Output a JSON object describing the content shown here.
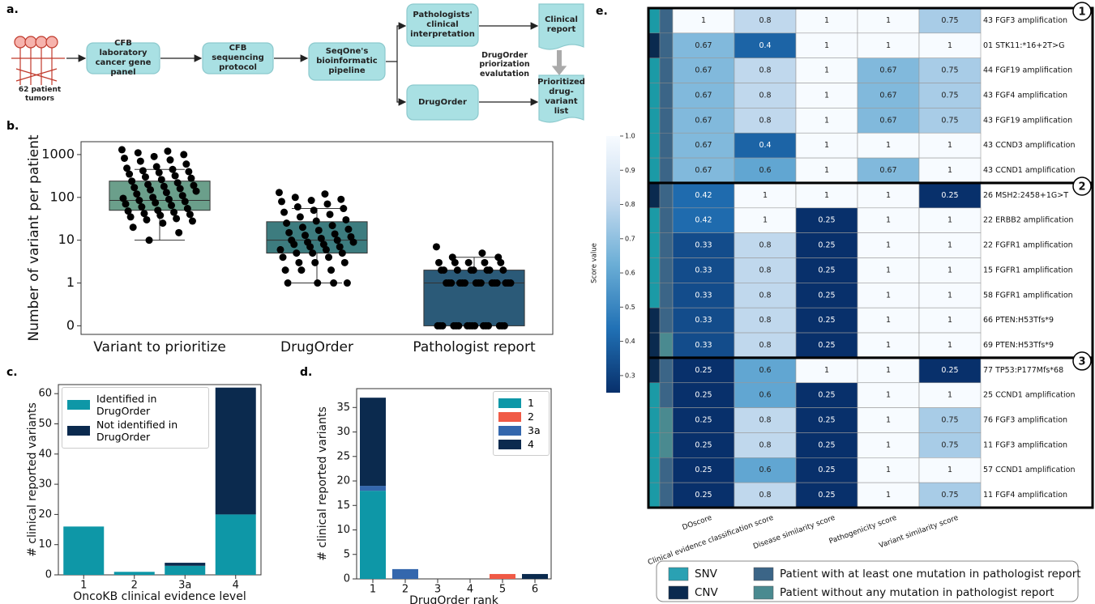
{
  "panel_labels": [
    "a.",
    "b.",
    "c.",
    "d.",
    "e."
  ],
  "diagram": {
    "source": "62 patient tumors",
    "nodes": [
      "CFB laboratory cancer gene panel",
      "CFB sequencing protocol",
      "SeqOne's bioinformatic pipeline",
      "Pathologists' clinical interpretation",
      "DrugOrder",
      "Clinical report",
      "Prioritized drug-variant list"
    ],
    "evaluation": "DrugOrder priorization evalutation"
  },
  "chart_data": [
    {
      "type": "box",
      "ylabel": "Number of variant per patient",
      "yscale": "symlog",
      "ylim": [
        -0.2,
        2000
      ],
      "yticks": [
        0,
        1,
        10,
        100,
        1000
      ],
      "categories": [
        "Variant to prioritize",
        "DrugOrder",
        "Pathologist report"
      ],
      "boxes": [
        {
          "color": "#6b9f8b",
          "whisker_low": 10,
          "q1": 50,
          "median": 85,
          "q3": 240,
          "whisker_high": 450,
          "points": [
            1300,
            1200,
            1100,
            1000,
            900,
            820,
            750,
            700,
            600,
            520,
            480,
            450,
            420,
            400,
            380,
            350,
            320,
            300,
            280,
            260,
            240,
            220,
            200,
            190,
            180,
            170,
            160,
            150,
            140,
            130,
            120,
            110,
            100,
            95,
            90,
            85,
            80,
            75,
            70,
            65,
            60,
            55,
            50,
            48,
            45,
            42,
            40,
            38,
            35,
            32,
            30,
            28,
            25,
            20,
            15,
            10
          ]
        },
        {
          "color": "#3d7c7f",
          "whisker_low": 1,
          "q1": 5,
          "median": 10,
          "q3": 27,
          "whisker_high": 55,
          "points": [
            130,
            120,
            100,
            90,
            85,
            80,
            70,
            60,
            55,
            50,
            45,
            40,
            35,
            30,
            28,
            25,
            22,
            20,
            18,
            17,
            15,
            14,
            13,
            12,
            11,
            10,
            10,
            9,
            9,
            8,
            8,
            7,
            7,
            6,
            6,
            5,
            5,
            5,
            4,
            4,
            3,
            3,
            3,
            2,
            2,
            2,
            1,
            1,
            1,
            1
          ]
        },
        {
          "color": "#2b5a78",
          "whisker_low": 0,
          "q1": 0,
          "median": 1,
          "q3": 2,
          "whisker_high": 4,
          "points": [
            7,
            5,
            4,
            4,
            3,
            3,
            3,
            3,
            3,
            2,
            2,
            2,
            2,
            2,
            2,
            2,
            2,
            1,
            1,
            1,
            1,
            1,
            1,
            1,
            1,
            1,
            1,
            1,
            1,
            1,
            1,
            1,
            0,
            0,
            0,
            0,
            0,
            0,
            0,
            0,
            0,
            0,
            0,
            0,
            0,
            0,
            0,
            0
          ]
        }
      ]
    },
    {
      "type": "stacked-bar",
      "xlabel": "OncoKB clinical evidence level",
      "ylabel": "# clinical reported variants",
      "categories": [
        "1",
        "2",
        "3a",
        "4"
      ],
      "series": [
        {
          "name": "Identified in DrugOrder",
          "color": "#0e97a7",
          "values": [
            16,
            1,
            3,
            20
          ]
        },
        {
          "name": "Not identified in DrugOrder",
          "color": "#0b2a4e",
          "values": [
            0,
            0,
            1,
            42
          ]
        }
      ],
      "ylim": [
        0,
        63
      ],
      "yticks": [
        0,
        10,
        20,
        30,
        40,
        50,
        60
      ],
      "legend": "upper left"
    },
    {
      "type": "stacked-bar",
      "xlabel": "DrugOrder rank",
      "ylabel": "# clinical reported variants",
      "categories": [
        "1",
        "2",
        "3",
        "4",
        "5",
        "6"
      ],
      "series": [
        {
          "name": "1",
          "color": "#0e97a7",
          "values": [
            18,
            0,
            0,
            0,
            0,
            0
          ]
        },
        {
          "name": "2",
          "color": "#f05a46",
          "values": [
            0,
            0,
            0,
            0,
            1,
            0
          ]
        },
        {
          "name": "3a",
          "color": "#3467ad",
          "values": [
            1,
            2,
            0,
            0,
            0,
            0
          ]
        },
        {
          "name": "4",
          "color": "#0b2a4e",
          "values": [
            18,
            0,
            0,
            0,
            0,
            1
          ]
        }
      ],
      "ylim": [
        0,
        38.85
      ],
      "yticks": [
        0,
        5,
        10,
        15,
        20,
        25,
        30,
        35
      ],
      "legend": "upper right"
    },
    {
      "type": "heatmap",
      "columns": [
        "DOscore",
        "Clinical evidence classification score",
        "Disease similarity score",
        "Pathogenicity score",
        "Variant similarity score"
      ],
      "clim": [
        0.25,
        1
      ],
      "colormap": [
        "#08306b",
        "#2171b5",
        "#6baed6",
        "#c6dbef",
        "#f7fbff"
      ],
      "cticks": [
        0.3,
        0.4,
        0.5,
        0.6,
        0.7,
        0.8,
        0.9,
        {
          "value": 1,
          "label": "1.0"
        }
      ],
      "clabel": "Score value",
      "groups": [
        {
          "label": "1",
          "rows": [
            {
              "label": "43 FGF3 amplification",
              "values": [
                1,
                0.8,
                1,
                1,
                0.75
              ],
              "variant_color": "#1b9aa6",
              "patient_color": "#3b6587"
            },
            {
              "label": "01 STK11:*16+2T>G",
              "values": [
                0.67,
                0.4,
                1,
                1,
                1
              ],
              "variant_color": "#0a2a4f",
              "patient_color": "#3b6587"
            },
            {
              "label": "44 FGF19 amplification",
              "values": [
                0.67,
                0.8,
                1,
                0.67,
                0.75
              ],
              "variant_color": "#1b9aa6",
              "patient_color": "#3b6587"
            },
            {
              "label": "43 FGF4 amplification",
              "values": [
                0.67,
                0.8,
                1,
                0.67,
                0.75
              ],
              "variant_color": "#1b9aa6",
              "patient_color": "#3b6587"
            },
            {
              "label": "43 FGF19 amplification",
              "values": [
                0.67,
                0.8,
                1,
                0.67,
                0.75
              ],
              "variant_color": "#1b9aa6",
              "patient_color": "#3b6587"
            },
            {
              "label": "43 CCND3 amplification",
              "values": [
                0.67,
                0.4,
                1,
                1,
                1
              ],
              "variant_color": "#1b9aa6",
              "patient_color": "#3b6587"
            },
            {
              "label": "43 CCND1 amplification",
              "values": [
                0.67,
                0.6,
                1,
                0.67,
                1
              ],
              "variant_color": "#1b9aa6",
              "patient_color": "#3b6587"
            }
          ]
        },
        {
          "label": "2",
          "rows": [
            {
              "label": "26 MSH2:2458+1G>T",
              "values": [
                0.42,
                1,
                1,
                1,
                0.25
              ],
              "variant_color": "#0a2a4f",
              "patient_color": "#3b6587"
            },
            {
              "label": "22 ERBB2 amplification",
              "values": [
                0.42,
                1,
                0.25,
                1,
                1
              ],
              "variant_color": "#1b9aa6",
              "patient_color": "#3b6587"
            },
            {
              "label": "22 FGFR1 amplification",
              "values": [
                0.33,
                0.8,
                0.25,
                1,
                1
              ],
              "variant_color": "#1b9aa6",
              "patient_color": "#3b6587"
            },
            {
              "label": "15 FGFR1 amplification",
              "values": [
                0.33,
                0.8,
                0.25,
                1,
                1
              ],
              "variant_color": "#1b9aa6",
              "patient_color": "#3b6587"
            },
            {
              "label": "58 FGFR1 amplification",
              "values": [
                0.33,
                0.8,
                0.25,
                1,
                1
              ],
              "variant_color": "#1b9aa6",
              "patient_color": "#3b6587"
            },
            {
              "label": "66 PTEN:H53Tfs*9",
              "values": [
                0.33,
                0.8,
                0.25,
                1,
                1
              ],
              "variant_color": "#0a2a4f",
              "patient_color": "#3b6587"
            },
            {
              "label": "69 PTEN:H53Tfs*9",
              "values": [
                0.33,
                0.8,
                0.25,
                1,
                1
              ],
              "variant_color": "#0a2a4f",
              "patient_color": "#4a8a90"
            }
          ]
        },
        {
          "label": "3",
          "rows": [
            {
              "label": "77 TP53:P177Mfs*68",
              "values": [
                0.25,
                0.6,
                1,
                1,
                0.25
              ],
              "variant_color": "#0a2a4f",
              "patient_color": "#3b6587"
            },
            {
              "label": "25 CCND1 amplification",
              "values": [
                0.25,
                0.6,
                0.25,
                1,
                1
              ],
              "variant_color": "#1b9aa6",
              "patient_color": "#3b6587"
            },
            {
              "label": "76 FGF3 amplification",
              "values": [
                0.25,
                0.8,
                0.25,
                1,
                0.75
              ],
              "variant_color": "#1b9aa6",
              "patient_color": "#4a8a90"
            },
            {
              "label": "11 FGF3 amplification",
              "values": [
                0.25,
                0.8,
                0.25,
                1,
                0.75
              ],
              "variant_color": "#1b9aa6",
              "patient_color": "#4a8a90"
            },
            {
              "label": "57 CCND1 amplification",
              "values": [
                0.25,
                0.6,
                0.25,
                1,
                1
              ],
              "variant_color": "#1b9aa6",
              "patient_color": "#3b6587"
            },
            {
              "label": "11 FGF4 amplification",
              "values": [
                0.25,
                0.8,
                0.25,
                1,
                0.75
              ],
              "variant_color": "#1b9aa6",
              "patient_color": "#3b6587"
            }
          ]
        }
      ],
      "legend": [
        {
          "name": "SNV",
          "color": "#2aa1b3"
        },
        {
          "name": "CNV",
          "color": "#0a2a4f"
        },
        {
          "name": "Patient with at least one mutation in pathologist report",
          "color": "#3b6587"
        },
        {
          "name": "Patient without any mutation in pathologist report",
          "color": "#4a8a90"
        }
      ]
    }
  ]
}
